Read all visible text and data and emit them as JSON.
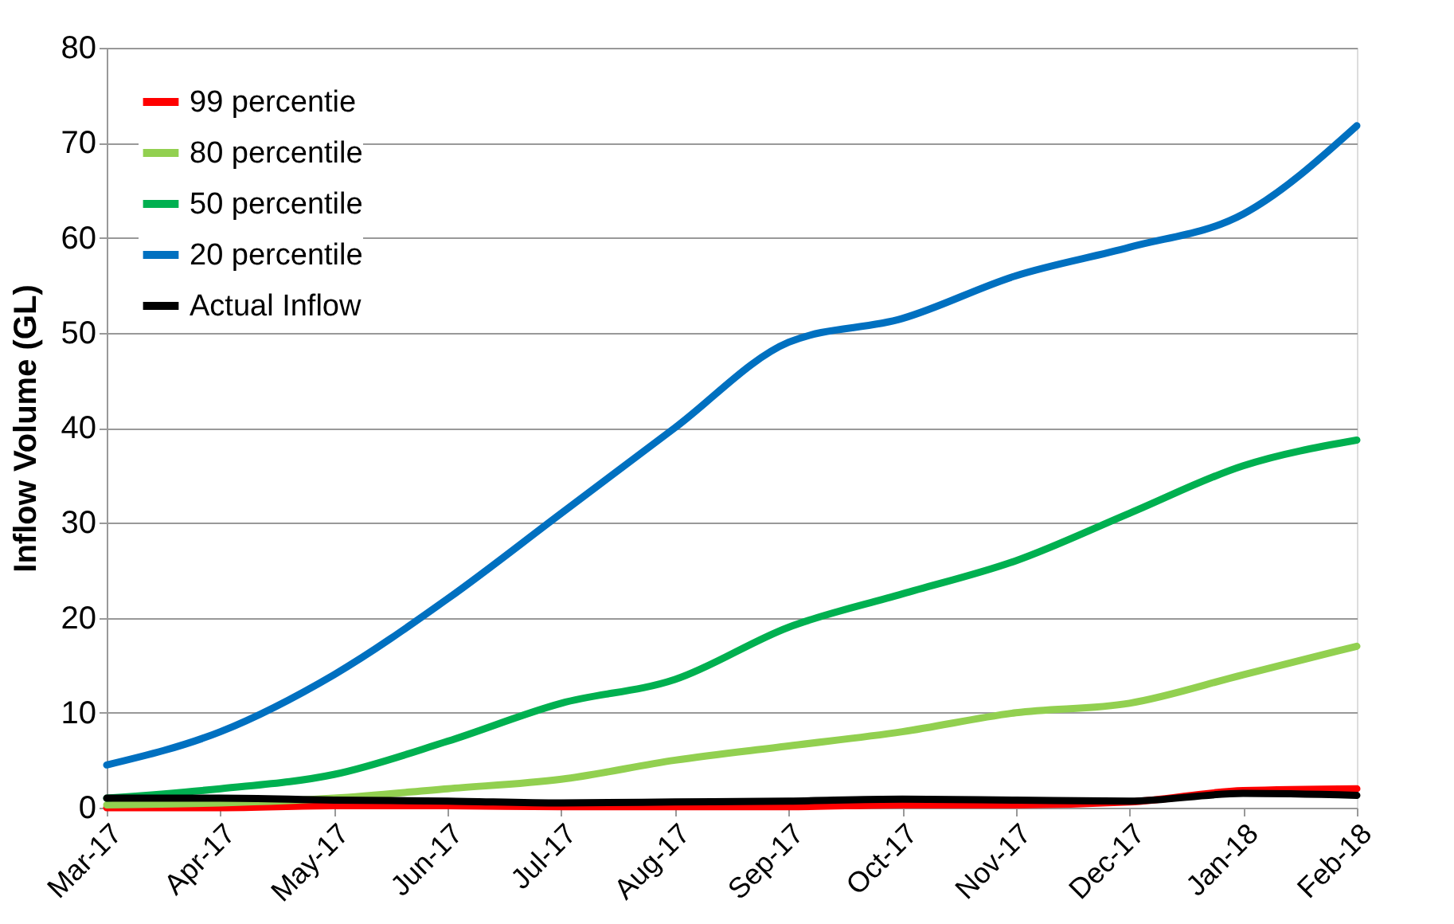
{
  "chart_data": {
    "type": "line",
    "ylabel": "Inflow Volume (GL)",
    "categories": [
      "Mar-17",
      "Apr-17",
      "May-17",
      "Jun-17",
      "Jul-17",
      "Aug-17",
      "Sep-17",
      "Oct-17",
      "Nov-17",
      "Dec-17",
      "Jan-18",
      "Feb-18"
    ],
    "series": [
      {
        "name": "99 percentie",
        "color": "#ff0000",
        "values": [
          0,
          0,
          0.2,
          0.2,
          0.1,
          0.1,
          0.1,
          0.3,
          0.3,
          0.6,
          1.8,
          2
        ]
      },
      {
        "name": "80 percentile",
        "color": "#92d050",
        "values": [
          0.3,
          0.5,
          1,
          2,
          3,
          5,
          6.5,
          8,
          10,
          11,
          14,
          17
        ]
      },
      {
        "name": "50 percentile",
        "color": "#00b050",
        "values": [
          1,
          2,
          3.5,
          7,
          11,
          13.5,
          19,
          22.5,
          26,
          31,
          36,
          38.7
        ]
      },
      {
        "name": "20 percentile",
        "color": "#0070c0",
        "values": [
          4.5,
          8,
          14,
          22,
          31,
          40,
          49,
          51.5,
          56,
          59,
          62.5,
          71.8
        ]
      },
      {
        "name": "Actual Inflow",
        "color": "#000000",
        "values": [
          1,
          1,
          0.8,
          0.7,
          0.5,
          0.6,
          0.7,
          0.9,
          0.8,
          0.7,
          1.5,
          1.3
        ]
      }
    ],
    "ylim": [
      0,
      80
    ],
    "yticks": [
      0,
      10,
      20,
      30,
      40,
      50,
      60,
      70,
      80
    ],
    "grid": "y",
    "legend": "top left",
    "line_style": "solid",
    "marker": "none"
  }
}
